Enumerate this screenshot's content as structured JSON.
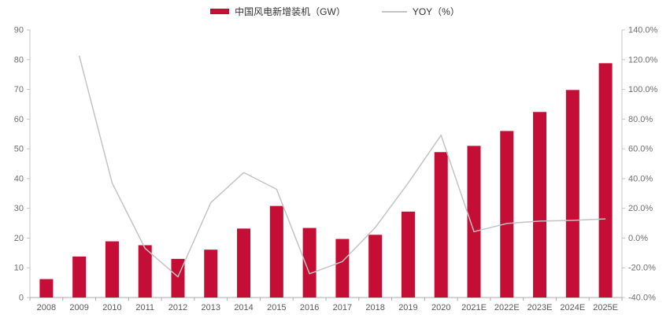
{
  "legend": [
    {
      "label": "中国风电新增装机（GW）",
      "type": "bar",
      "color": "#C40E35"
    },
    {
      "label": "YOY（%）",
      "type": "line",
      "color": "#C3C3C3"
    }
  ],
  "chart_data": {
    "type": "bar+line",
    "title": "",
    "categories": [
      "2008",
      "2009",
      "2010",
      "2011",
      "2012",
      "2013",
      "2014",
      "2015",
      "2016",
      "2017",
      "2018",
      "2019",
      "2020",
      "2021E",
      "2022E",
      "2023E",
      "2024E",
      "2025E"
    ],
    "series": [
      {
        "name": "中国风电新增装机（GW）",
        "type": "bar",
        "axis": "left",
        "color": "#C40E35",
        "values": [
          6.2,
          13.8,
          18.9,
          17.6,
          13.0,
          16.1,
          23.2,
          30.8,
          23.4,
          19.7,
          21.1,
          28.9,
          48.9,
          51.0,
          56.0,
          62.4,
          69.8,
          78.8
        ]
      },
      {
        "name": "YOY（%）",
        "type": "line",
        "axis": "right",
        "color": "#C3C3C3",
        "values": [
          null,
          122.6,
          37.0,
          -6.9,
          -26.1,
          23.8,
          44.1,
          32.8,
          -24.0,
          -15.8,
          7.1,
          37.0,
          69.2,
          4.3,
          9.8,
          11.4,
          11.9,
          12.9
        ]
      }
    ],
    "left_axis": {
      "min": 0,
      "max": 90,
      "step": 10,
      "tick_labels": [
        "0",
        "10",
        "20",
        "30",
        "40",
        "50",
        "60",
        "70",
        "80",
        "90"
      ]
    },
    "right_axis": {
      "min": -40,
      "max": 140,
      "step": 20,
      "tick_labels": [
        "-40.0%",
        "-20.0%",
        "0.0%",
        "20.0%",
        "40.0%",
        "60.0%",
        "80.0%",
        "100.0%",
        "120.0%",
        "140.0%"
      ]
    },
    "grid": false,
    "legend_position": "top"
  }
}
